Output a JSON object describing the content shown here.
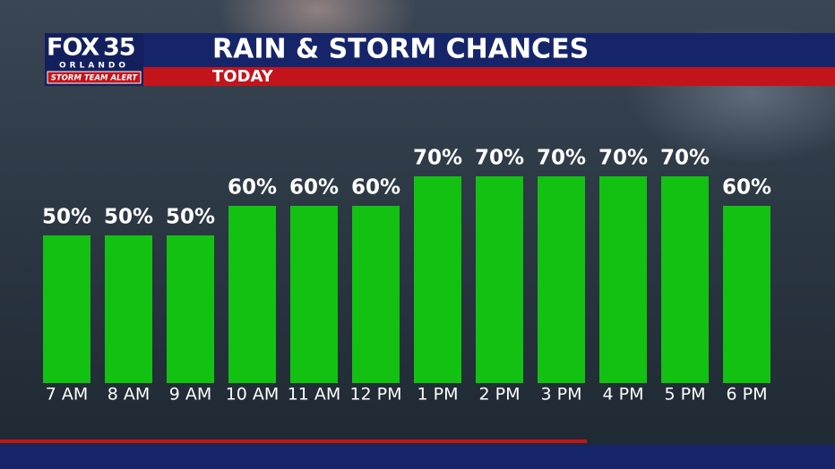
{
  "branding": {
    "network": "FOX",
    "channel": "35",
    "city": "ORLANDO",
    "tag": "STORM TEAM ALERT"
  },
  "chart_data": {
    "type": "bar",
    "title": "RAIN & STORM CHANCES",
    "subtitle": "TODAY",
    "categories": [
      "7 AM",
      "8 AM",
      "9 AM",
      "10 AM",
      "11 AM",
      "12 PM",
      "1 PM",
      "2 PM",
      "3 PM",
      "4 PM",
      "5 PM",
      "6 PM"
    ],
    "values": [
      50,
      50,
      50,
      60,
      60,
      60,
      70,
      70,
      70,
      70,
      70,
      60
    ],
    "value_labels": [
      "50%",
      "50%",
      "50%",
      "60%",
      "60%",
      "60%",
      "70%",
      "70%",
      "70%",
      "70%",
      "70%",
      "60%"
    ],
    "color": "#12c112",
    "ylim": [
      0,
      100
    ]
  }
}
